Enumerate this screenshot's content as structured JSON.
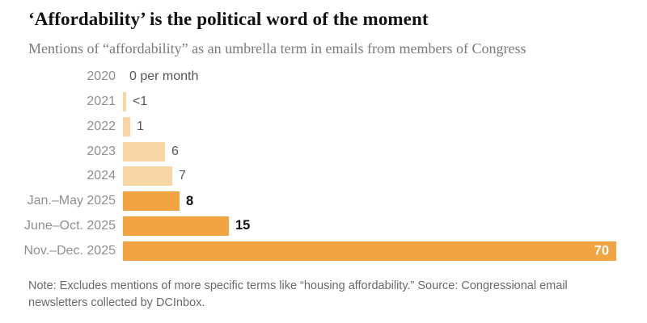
{
  "header": {
    "title": "‘Affordability’ is the political word of the moment",
    "subtitle": "Mentions of “affordability” as an umbrella term in emails from members of Congress"
  },
  "chart_data": {
    "type": "bar",
    "orientation": "horizontal",
    "title": "‘Affordability’ is the political word of the moment",
    "subtitle": "Mentions of “affordability” as an umbrella term in emails from members of Congress",
    "categories": [
      "2020",
      "2021",
      "2022",
      "2023",
      "2024",
      "Jan.–May 2025",
      "June–Oct. 2025",
      "Nov.–Dec. 2025"
    ],
    "values": [
      0,
      0.5,
      1,
      6,
      7,
      8,
      15,
      70
    ],
    "value_labels": [
      "0 per month",
      "<1",
      "1",
      "6",
      "7",
      "8",
      "15",
      "70"
    ],
    "emphasized": [
      false,
      false,
      false,
      false,
      false,
      true,
      true,
      true
    ],
    "value_label_inside": [
      false,
      false,
      false,
      false,
      false,
      false,
      false,
      true
    ],
    "xlim": [
      0,
      70
    ],
    "grid": false,
    "legend": "none",
    "colors": {
      "bar_light": "#f7d5a5",
      "bar_dark": "#f2a342",
      "category_label": "#8f8f8f",
      "value_plain": "#55555b",
      "value_bold": "#121212",
      "value_inside": "#ffffff"
    }
  },
  "footer": {
    "note": "Note: Excludes mentions of more specific terms like “housing affordability.” Source: Congressional email newsletters collected by DCInbox."
  }
}
